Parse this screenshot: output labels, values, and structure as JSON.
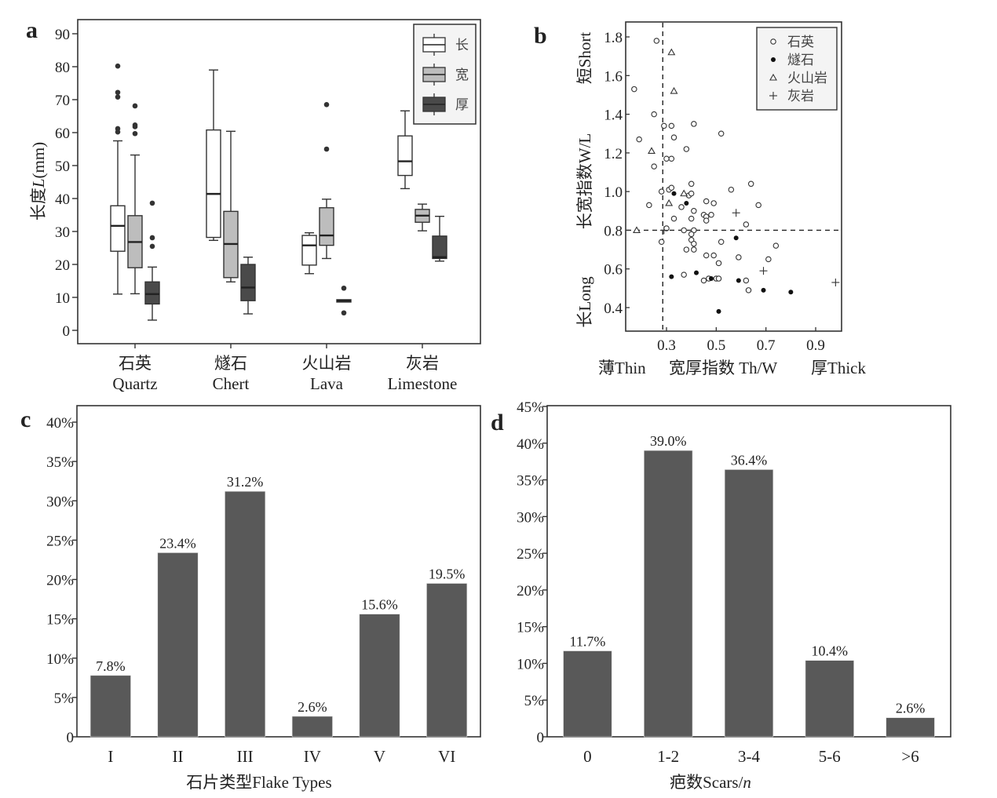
{
  "chart_data": [
    {
      "panel": "a",
      "type": "box",
      "ylabel": "长度L(mm)",
      "ylim": [
        -5,
        95
      ],
      "yticks": [
        0,
        10,
        20,
        30,
        40,
        50,
        60,
        70,
        80,
        90
      ],
      "categories": [
        {
          "cn": "石英",
          "en": "Quartz"
        },
        {
          "cn": "燧石",
          "en": "Chert"
        },
        {
          "cn": "火山岩",
          "en": "Lava"
        },
        {
          "cn": "灰岩",
          "en": "Limestone"
        }
      ],
      "legend": {
        "position": "top-right",
        "entries": [
          {
            "label": "长",
            "color": "#ffffff"
          },
          {
            "label": "宽",
            "color": "#bdbdbd"
          },
          {
            "label": "厚",
            "color": "#4a4a4a"
          }
        ]
      },
      "series": [
        {
          "name": "长",
          "color": "#ffffff",
          "boxes": [
            {
              "min": 11,
              "q1": 24,
              "median": 31.7,
              "q3": 37.8,
              "max": 57.5,
              "outliers": [
                60.2,
                61.2,
                70.8,
                72.2,
                80.2
              ]
            },
            {
              "min": 27.3,
              "q1": 28.2,
              "median": 41.4,
              "q3": 60.8,
              "max": 79,
              "outliers": []
            },
            {
              "min": 17.2,
              "q1": 19.8,
              "median": 25.8,
              "q3": 28.8,
              "max": 29.6,
              "outliers": []
            },
            {
              "min": 43.0,
              "q1": 47.0,
              "median": 51.3,
              "q3": 59.0,
              "max": 66.6,
              "outliers": []
            }
          ]
        },
        {
          "name": "宽",
          "color": "#bdbdbd",
          "boxes": [
            {
              "min": 11.1,
              "q1": 19.0,
              "median": 26.8,
              "q3": 34.8,
              "max": 53.2,
              "outliers": [
                59.7,
                61.8,
                62.3,
                68.1
              ]
            },
            {
              "min": 14.7,
              "q1": 16.0,
              "median": 26.2,
              "q3": 36.1,
              "max": 60.4,
              "outliers": []
            },
            {
              "min": 21.8,
              "q1": 25.8,
              "median": 28.8,
              "q3": 37.2,
              "max": 39.8,
              "outliers": [
                55.0,
                68.5
              ]
            },
            {
              "min": 30.2,
              "q1": 32.8,
              "median": 34.8,
              "q3": 36.7,
              "max": 38.3,
              "outliers": []
            }
          ]
        },
        {
          "name": "厚",
          "color": "#4a4a4a",
          "boxes": [
            {
              "min": 3.1,
              "q1": 8.0,
              "median": 11.0,
              "q3": 14.7,
              "max": 19.2,
              "outliers": [
                25.5,
                28.1,
                38.6
              ]
            },
            {
              "min": 5.0,
              "q1": 9.0,
              "median": 13.0,
              "q3": 20.0,
              "max": 22.2,
              "outliers": []
            },
            {
              "min": 9.0,
              "q1": 8.8,
              "median": 9.0,
              "q3": 9.3,
              "max": 9.0,
              "outliers": [
                5.3,
                12.8
              ]
            },
            {
              "min": 21.0,
              "q1": 21.8,
              "median": 22.2,
              "q3": 28.6,
              "max": 34.6,
              "outliers": []
            }
          ]
        }
      ]
    },
    {
      "panel": "b",
      "type": "scatter",
      "ylabel": "长宽指数W/L",
      "ylabel_top": "短Short",
      "ylabel_bottom": "长Long",
      "xlabel": "宽厚指数 Th/W",
      "xlabel_left": "薄Thin",
      "xlabel_right": "厚Thick",
      "xlim": [
        0.14,
        1.0
      ],
      "ylim": [
        0.28,
        1.87
      ],
      "xticks": [
        0.3,
        0.5,
        0.7,
        0.9
      ],
      "yticks": [
        0.4,
        0.6,
        0.8,
        1.0,
        1.2,
        1.4,
        1.6,
        1.8
      ],
      "reference_lines": {
        "x": 0.285,
        "y": 0.8,
        "style": "dashed"
      },
      "legend": {
        "position": "top-right",
        "entries": [
          {
            "label": "石英",
            "marker": "open-circle"
          },
          {
            "label": "燧石",
            "marker": "filled-circle"
          },
          {
            "label": "火山岩",
            "marker": "triangle"
          },
          {
            "label": "灰岩",
            "marker": "plus"
          }
        ]
      },
      "series": [
        {
          "name": "石英",
          "marker": "open-circle",
          "points": [
            [
              0.26,
              1.78
            ],
            [
              0.17,
              1.53
            ],
            [
              0.25,
              1.4
            ],
            [
              0.29,
              1.34
            ],
            [
              0.32,
              1.34
            ],
            [
              0.41,
              1.35
            ],
            [
              0.52,
              1.3
            ],
            [
              0.19,
              1.27
            ],
            [
              0.33,
              1.28
            ],
            [
              0.38,
              1.22
            ],
            [
              0.3,
              1.17
            ],
            [
              0.32,
              1.17
            ],
            [
              0.25,
              1.13
            ],
            [
              0.28,
              1.0
            ],
            [
              0.31,
              1.01
            ],
            [
              0.32,
              1.02
            ],
            [
              0.4,
              1.04
            ],
            [
              0.39,
              0.98
            ],
            [
              0.4,
              0.99
            ],
            [
              0.56,
              1.01
            ],
            [
              0.64,
              1.04
            ],
            [
              0.23,
              0.93
            ],
            [
              0.36,
              0.92
            ],
            [
              0.46,
              0.95
            ],
            [
              0.49,
              0.94
            ],
            [
              0.67,
              0.93
            ],
            [
              0.41,
              0.9
            ],
            [
              0.33,
              0.86
            ],
            [
              0.45,
              0.88
            ],
            [
              0.48,
              0.88
            ],
            [
              0.46,
              0.87
            ],
            [
              0.4,
              0.86
            ],
            [
              0.46,
              0.85
            ],
            [
              0.62,
              0.83
            ],
            [
              0.3,
              0.81
            ],
            [
              0.37,
              0.8
            ],
            [
              0.41,
              0.8
            ],
            [
              0.4,
              0.78
            ],
            [
              0.28,
              0.74
            ],
            [
              0.4,
              0.75
            ],
            [
              0.41,
              0.73
            ],
            [
              0.52,
              0.74
            ],
            [
              0.74,
              0.72
            ],
            [
              0.38,
              0.7
            ],
            [
              0.41,
              0.7
            ],
            [
              0.46,
              0.67
            ],
            [
              0.49,
              0.67
            ],
            [
              0.59,
              0.66
            ],
            [
              0.71,
              0.65
            ],
            [
              0.51,
              0.63
            ],
            [
              0.37,
              0.57
            ],
            [
              0.47,
              0.55
            ],
            [
              0.45,
              0.54
            ],
            [
              0.5,
              0.55
            ],
            [
              0.51,
              0.55
            ],
            [
              0.62,
              0.54
            ],
            [
              0.63,
              0.49
            ]
          ]
        },
        {
          "name": "燧石",
          "marker": "filled-circle",
          "points": [
            [
              0.33,
              0.99
            ],
            [
              0.38,
              0.94
            ],
            [
              0.58,
              0.76
            ],
            [
              0.32,
              0.56
            ],
            [
              0.42,
              0.58
            ],
            [
              0.48,
              0.55
            ],
            [
              0.59,
              0.54
            ],
            [
              0.69,
              0.49
            ],
            [
              0.8,
              0.48
            ],
            [
              0.51,
              0.38
            ]
          ]
        },
        {
          "name": "火山岩",
          "marker": "triangle",
          "points": [
            [
              0.32,
              1.72
            ],
            [
              0.33,
              1.52
            ],
            [
              0.24,
              1.21
            ],
            [
              0.37,
              0.99
            ],
            [
              0.31,
              0.94
            ],
            [
              0.18,
              0.8
            ]
          ]
        },
        {
          "name": "灰岩",
          "marker": "plus",
          "points": [
            [
              0.58,
              0.89
            ],
            [
              0.69,
              0.59
            ],
            [
              0.98,
              0.53
            ],
            [
              0.29,
              0.8
            ]
          ]
        }
      ]
    },
    {
      "panel": "c",
      "type": "bar",
      "xlabel": "石片类型Flake Types",
      "ylabel": "",
      "ylim": [
        0,
        42
      ],
      "yticks": [
        "0",
        "5%",
        "10%",
        "15%",
        "20%",
        "25%",
        "30%",
        "35%",
        "40%"
      ],
      "categories": [
        "I",
        "II",
        "III",
        "IV",
        "V",
        "VI"
      ],
      "values": [
        7.8,
        23.4,
        31.2,
        2.6,
        15.6,
        19.5
      ],
      "value_labels": [
        "7.8%",
        "23.4%",
        "31.2%",
        "2.6%",
        "15.6%",
        "19.5%"
      ],
      "bar_color": "#595959"
    },
    {
      "panel": "d",
      "type": "bar",
      "xlabel_cn": "疤数Scars/",
      "xlabel_italic": "n",
      "ylabel": "",
      "ylim": [
        0,
        45
      ],
      "yticks": [
        "0",
        "5%",
        "10%",
        "15%",
        "20%",
        "25%",
        "30%",
        "35%",
        "40%",
        "45%"
      ],
      "categories": [
        "0",
        "1-2",
        "3-4",
        "5-6",
        ">6"
      ],
      "values": [
        11.7,
        39.0,
        36.4,
        10.4,
        2.6
      ],
      "value_labels": [
        "11.7%",
        "39.0%",
        "36.4%",
        "10.4%",
        "2.6%"
      ],
      "bar_color": "#595959"
    }
  ],
  "panel_letters": [
    "a",
    "b",
    "c",
    "d"
  ],
  "panel_a_ylabel_main": "长度",
  "panel_a_ylabel_var": "L",
  "panel_a_ylabel_unit": "(mm)"
}
